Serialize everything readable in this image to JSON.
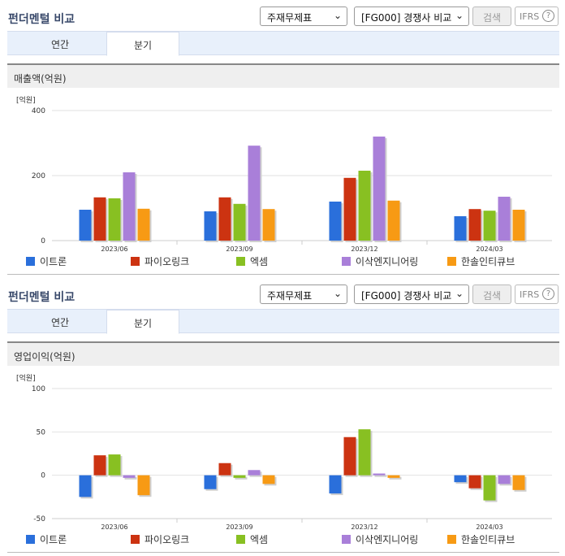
{
  "panels": [
    {
      "title": "펀더멘털 비교",
      "select_report": "주재무제표",
      "select_compare": "[FG000] 경쟁사 비교",
      "search_label": "검색",
      "ifrs_label": "IFRS",
      "help_label": "?",
      "tabs": [
        "연간",
        "분기"
      ],
      "active_tab": "분기",
      "section_title": "매출액(억원)"
    },
    {
      "title": "펀더멘털 비교",
      "select_report": "주재무제표",
      "select_compare": "[FG000] 경쟁사 비교",
      "search_label": "검색",
      "ifrs_label": "IFRS",
      "help_label": "?",
      "tabs": [
        "연간",
        "분기"
      ],
      "active_tab": "분기",
      "section_title": "영업이익(억원)"
    }
  ],
  "legend": [
    {
      "name": "이트론",
      "color": "#2a6fdb"
    },
    {
      "name": "파이오링크",
      "color": "#cc3311"
    },
    {
      "name": "엑셈",
      "color": "#88c022"
    },
    {
      "name": "이삭엔지니어링",
      "color": "#a97fd9"
    },
    {
      "name": "한솔인티큐브",
      "color": "#f79a14"
    }
  ],
  "chart_data": [
    {
      "type": "bar",
      "unit_label": "[억원]",
      "categories": [
        "2023/06",
        "2023/09",
        "2023/12",
        "2024/03"
      ],
      "ylim": [
        0,
        400
      ],
      "yticks": [
        0,
        200,
        400
      ],
      "series": [
        {
          "name": "이트론",
          "values": [
            95,
            90,
            120,
            75
          ]
        },
        {
          "name": "파이오링크",
          "values": [
            133,
            133,
            193,
            97
          ]
        },
        {
          "name": "엑셈",
          "values": [
            130,
            113,
            215,
            92
          ]
        },
        {
          "name": "이삭엔지니어링",
          "values": [
            210,
            292,
            320,
            135
          ]
        },
        {
          "name": "한솔인티큐브",
          "values": [
            98,
            97,
            123,
            95
          ]
        }
      ]
    },
    {
      "type": "bar",
      "unit_label": "[억원]",
      "categories": [
        "2023/06",
        "2023/09",
        "2023/12",
        "2024/03"
      ],
      "ylim": [
        -50,
        100
      ],
      "yticks": [
        -50,
        0,
        50,
        100
      ],
      "series": [
        {
          "name": "이트론",
          "values": [
            -25,
            -16,
            -21,
            -8
          ]
        },
        {
          "name": "파이오링크",
          "values": [
            23,
            14,
            44,
            -15
          ]
        },
        {
          "name": "엑셈",
          "values": [
            24,
            -3,
            53,
            -29
          ]
        },
        {
          "name": "이삭엔지니어링",
          "values": [
            -3,
            6,
            2,
            -10
          ]
        },
        {
          "name": "한솔인티큐브",
          "values": [
            -23,
            -10,
            -3,
            -17
          ]
        }
      ]
    }
  ]
}
